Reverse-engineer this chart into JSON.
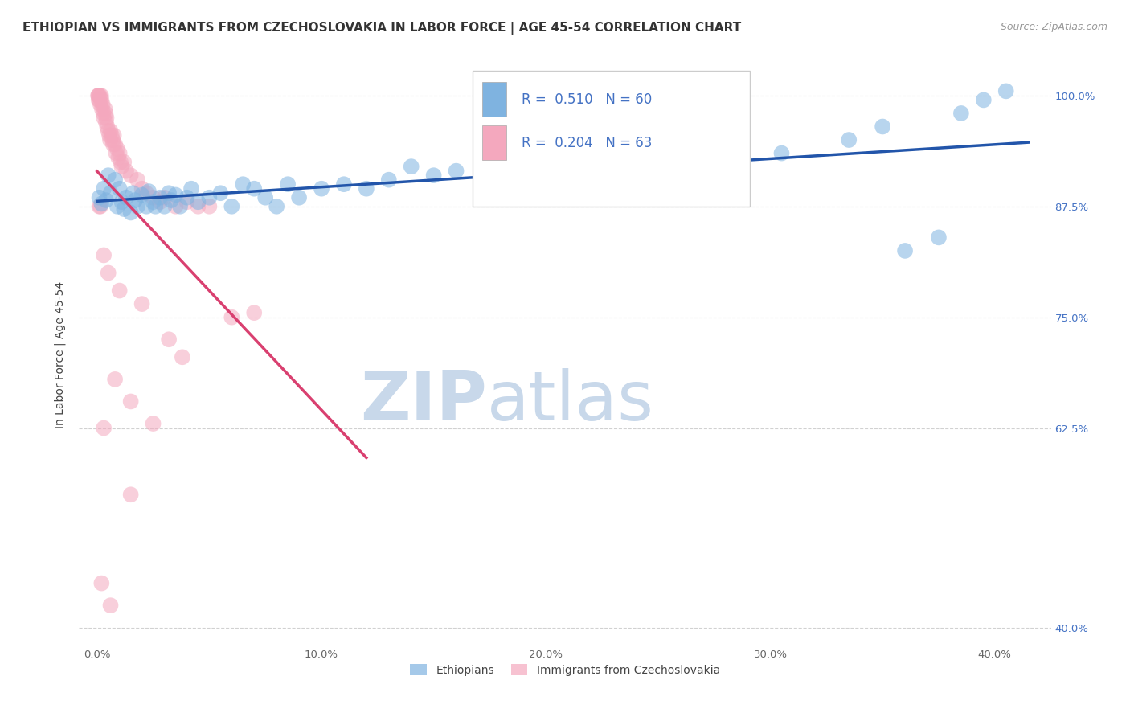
{
  "title": "ETHIOPIAN VS IMMIGRANTS FROM CZECHOSLOVAKIA IN LABOR FORCE | AGE 45-54 CORRELATION CHART",
  "source": "Source: ZipAtlas.com",
  "ylabel": "In Labor Force | Age 45-54",
  "x_tick_labels": [
    "0.0%",
    "10.0%",
    "20.0%",
    "30.0%",
    "40.0%"
  ],
  "x_tick_vals": [
    0.0,
    10.0,
    20.0,
    30.0,
    40.0
  ],
  "y_tick_labels": [
    "100.0%",
    "87.5%",
    "75.0%",
    "62.5%",
    "40.0%"
  ],
  "y_tick_vals": [
    100.0,
    87.5,
    75.0,
    62.5,
    40.0
  ],
  "xlim": [
    -0.8,
    42.5
  ],
  "ylim": [
    38.0,
    103.5
  ],
  "watermark_zip": "ZIP",
  "watermark_atlas": "atlas",
  "watermark_color": "#c8d8ea",
  "blue_color": "#7fb3e0",
  "pink_color": "#f4a8be",
  "blue_line_color": "#2255aa",
  "pink_line_color": "#d94070",
  "blue_scatter": [
    [
      0.1,
      88.5
    ],
    [
      0.2,
      87.8
    ],
    [
      0.3,
      89.5
    ],
    [
      0.4,
      88.2
    ],
    [
      0.5,
      91.0
    ],
    [
      0.6,
      89.0
    ],
    [
      0.8,
      90.5
    ],
    [
      0.9,
      87.5
    ],
    [
      1.0,
      89.5
    ],
    [
      1.1,
      88.0
    ],
    [
      1.2,
      87.2
    ],
    [
      1.3,
      88.5
    ],
    [
      1.5,
      86.8
    ],
    [
      1.6,
      89.0
    ],
    [
      1.7,
      88.2
    ],
    [
      1.8,
      87.5
    ],
    [
      2.0,
      88.8
    ],
    [
      2.2,
      87.5
    ],
    [
      2.3,
      89.2
    ],
    [
      2.5,
      88.0
    ],
    [
      2.6,
      87.5
    ],
    [
      2.8,
      88.5
    ],
    [
      3.0,
      87.5
    ],
    [
      3.2,
      89.0
    ],
    [
      3.3,
      88.2
    ],
    [
      3.5,
      88.8
    ],
    [
      3.7,
      87.5
    ],
    [
      4.0,
      88.5
    ],
    [
      4.2,
      89.5
    ],
    [
      4.5,
      88.0
    ],
    [
      5.0,
      88.5
    ],
    [
      5.5,
      89.0
    ],
    [
      6.0,
      87.5
    ],
    [
      6.5,
      90.0
    ],
    [
      7.0,
      89.5
    ],
    [
      7.5,
      88.5
    ],
    [
      8.0,
      87.5
    ],
    [
      8.5,
      90.0
    ],
    [
      9.0,
      88.5
    ],
    [
      10.0,
      89.5
    ],
    [
      11.0,
      90.0
    ],
    [
      12.0,
      89.5
    ],
    [
      13.0,
      90.5
    ],
    [
      14.0,
      92.0
    ],
    [
      15.0,
      91.0
    ],
    [
      16.0,
      91.5
    ],
    [
      17.5,
      91.0
    ],
    [
      19.0,
      92.5
    ],
    [
      21.0,
      91.5
    ],
    [
      22.5,
      90.5
    ],
    [
      25.0,
      93.0
    ],
    [
      27.0,
      92.5
    ],
    [
      30.5,
      93.5
    ],
    [
      33.5,
      95.0
    ],
    [
      35.0,
      96.5
    ],
    [
      36.0,
      82.5
    ],
    [
      37.5,
      84.0
    ],
    [
      38.5,
      98.0
    ],
    [
      39.5,
      99.5
    ],
    [
      40.5,
      100.5
    ]
  ],
  "pink_scatter": [
    [
      0.05,
      100.0
    ],
    [
      0.06,
      100.0
    ],
    [
      0.07,
      99.5
    ],
    [
      0.08,
      100.0
    ],
    [
      0.1,
      99.5
    ],
    [
      0.12,
      100.0
    ],
    [
      0.15,
      99.0
    ],
    [
      0.18,
      100.0
    ],
    [
      0.2,
      99.5
    ],
    [
      0.22,
      98.5
    ],
    [
      0.25,
      99.0
    ],
    [
      0.28,
      98.0
    ],
    [
      0.3,
      97.5
    ],
    [
      0.35,
      98.5
    ],
    [
      0.38,
      98.0
    ],
    [
      0.4,
      97.0
    ],
    [
      0.42,
      97.5
    ],
    [
      0.45,
      96.5
    ],
    [
      0.5,
      96.0
    ],
    [
      0.55,
      95.5
    ],
    [
      0.58,
      95.0
    ],
    [
      0.6,
      96.0
    ],
    [
      0.65,
      95.5
    ],
    [
      0.7,
      95.0
    ],
    [
      0.72,
      94.5
    ],
    [
      0.75,
      95.5
    ],
    [
      0.8,
      94.5
    ],
    [
      0.85,
      93.5
    ],
    [
      0.9,
      94.0
    ],
    [
      0.95,
      93.0
    ],
    [
      1.0,
      93.5
    ],
    [
      1.05,
      92.5
    ],
    [
      1.1,
      92.0
    ],
    [
      1.2,
      92.5
    ],
    [
      1.3,
      91.5
    ],
    [
      1.5,
      91.0
    ],
    [
      1.8,
      90.5
    ],
    [
      2.0,
      89.5
    ],
    [
      2.2,
      89.0
    ],
    [
      2.5,
      88.5
    ],
    [
      2.8,
      88.0
    ],
    [
      3.0,
      88.5
    ],
    [
      3.5,
      87.5
    ],
    [
      4.0,
      88.0
    ],
    [
      4.5,
      87.5
    ],
    [
      5.0,
      87.5
    ],
    [
      6.0,
      75.0
    ],
    [
      7.0,
      75.5
    ],
    [
      0.1,
      87.5
    ],
    [
      0.15,
      87.5
    ],
    [
      0.3,
      82.0
    ],
    [
      0.5,
      80.0
    ],
    [
      1.0,
      78.0
    ],
    [
      2.0,
      76.5
    ],
    [
      3.2,
      72.5
    ],
    [
      3.8,
      70.5
    ],
    [
      0.8,
      68.0
    ],
    [
      1.5,
      65.5
    ],
    [
      2.5,
      63.0
    ],
    [
      0.3,
      62.5
    ],
    [
      0.2,
      45.0
    ],
    [
      0.6,
      42.5
    ],
    [
      1.5,
      55.0
    ]
  ],
  "title_fontsize": 11,
  "source_fontsize": 9,
  "axis_label_fontsize": 10,
  "tick_fontsize": 9.5,
  "legend_fontsize": 12
}
